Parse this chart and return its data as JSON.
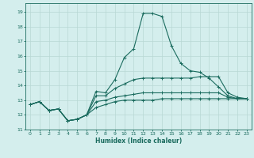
{
  "xlabel": "Humidex (Indice chaleur)",
  "bg_color": "#d4eeed",
  "grid_color": "#b8d8d4",
  "line_color": "#1a6b5e",
  "xlim": [
    -0.5,
    23.5
  ],
  "ylim": [
    11.0,
    19.6
  ],
  "yticks": [
    11,
    12,
    13,
    14,
    15,
    16,
    17,
    18,
    19
  ],
  "xticks": [
    0,
    1,
    2,
    3,
    4,
    5,
    6,
    7,
    8,
    9,
    10,
    11,
    12,
    13,
    14,
    15,
    16,
    17,
    18,
    19,
    20,
    21,
    22,
    23
  ],
  "series": [
    [
      12.7,
      12.9,
      12.3,
      12.4,
      11.6,
      11.7,
      12.0,
      13.6,
      13.5,
      14.4,
      15.9,
      16.5,
      18.9,
      18.9,
      18.7,
      16.7,
      15.5,
      15.0,
      14.9,
      14.5,
      13.9,
      13.3,
      13.1,
      13.1
    ],
    [
      12.7,
      12.9,
      12.3,
      12.4,
      11.6,
      11.7,
      12.0,
      13.3,
      13.3,
      13.8,
      14.1,
      14.4,
      14.5,
      14.5,
      14.5,
      14.5,
      14.5,
      14.5,
      14.6,
      14.6,
      14.6,
      13.5,
      13.2,
      13.1
    ],
    [
      12.7,
      12.9,
      12.3,
      12.4,
      11.6,
      11.7,
      12.0,
      12.9,
      13.0,
      13.2,
      13.3,
      13.4,
      13.5,
      13.5,
      13.5,
      13.5,
      13.5,
      13.5,
      13.5,
      13.5,
      13.5,
      13.2,
      13.1,
      13.1
    ],
    [
      12.7,
      12.9,
      12.3,
      12.4,
      11.6,
      11.7,
      12.0,
      12.5,
      12.7,
      12.9,
      13.0,
      13.0,
      13.0,
      13.0,
      13.1,
      13.1,
      13.1,
      13.1,
      13.1,
      13.1,
      13.1,
      13.1,
      13.1,
      13.1
    ]
  ]
}
